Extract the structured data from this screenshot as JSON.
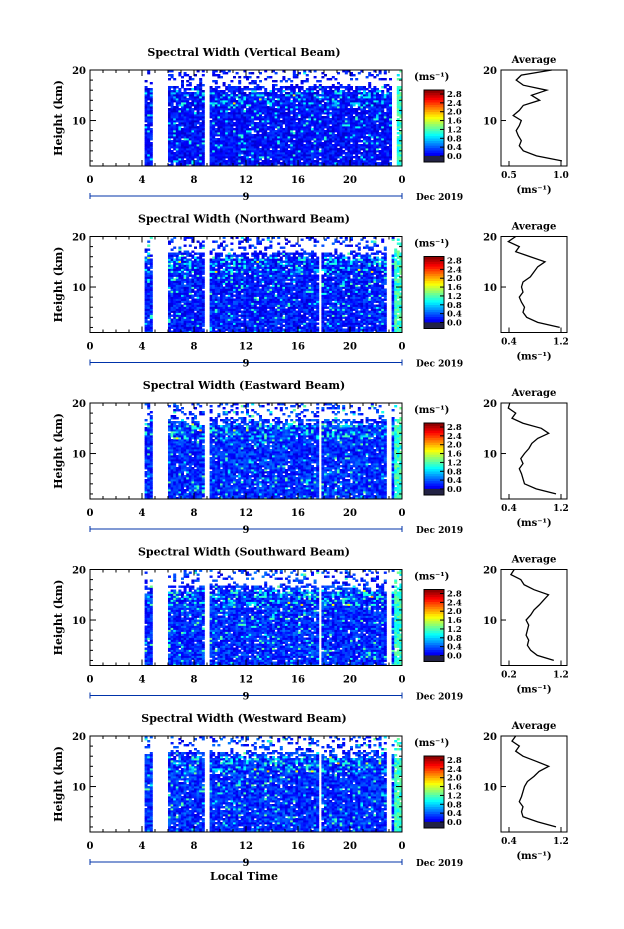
{
  "figure": {
    "xlabel": "Local Time",
    "date_label": "Dec 2019",
    "day_label": "9",
    "time_ticks": [
      "0",
      "4",
      "8",
      "12",
      "16",
      "20",
      "0"
    ],
    "height_ticks": [
      "10",
      "20"
    ],
    "ylabel": "Height (km)",
    "colorbar_unit": "(ms⁻¹)",
    "colorbar_ticks": [
      "0.0",
      "0.4",
      "0.8",
      "1.2",
      "1.6",
      "2.0",
      "2.4",
      "2.8"
    ],
    "profile_title": "Average",
    "profile_xlabel": "(ms⁻¹)"
  },
  "chart_data": [
    {
      "type": "heatmap",
      "title": "Spectral Width (Vertical Beam)",
      "xlabel": "Local Time",
      "ylabel": "Height (km)",
      "xlim": [
        0,
        24
      ],
      "ylim": [
        1,
        20
      ],
      "zlim": [
        0,
        3.0
      ],
      "data_gaps_hours": [
        [
          0,
          4.3
        ],
        [
          4.9,
          6.1
        ],
        [
          8.8,
          9.3
        ],
        [
          23.3,
          23.6
        ]
      ],
      "typical_value_ms": 0.4,
      "profile": {
        "type": "line",
        "title": "Average",
        "xlim": [
          0.4,
          1.05
        ],
        "xticks": [
          "0.5",
          "1.0"
        ],
        "heights_km": [
          2,
          3,
          4,
          5,
          6,
          7,
          8,
          9,
          10,
          11,
          12,
          13,
          14,
          15,
          16,
          17,
          18,
          19,
          20
        ],
        "values": [
          1.0,
          0.75,
          0.62,
          0.58,
          0.6,
          0.57,
          0.55,
          0.58,
          0.6,
          0.52,
          0.58,
          0.62,
          0.78,
          0.7,
          0.85,
          0.62,
          0.55,
          0.6,
          0.9
        ]
      }
    },
    {
      "type": "heatmap",
      "title": "Spectral Width (Northward Beam)",
      "xlabel": "Local Time",
      "ylabel": "Height (km)",
      "xlim": [
        0,
        24
      ],
      "ylim": [
        1,
        20
      ],
      "zlim": [
        0,
        3.0
      ],
      "data_gaps_hours": [
        [
          0,
          4.3
        ],
        [
          4.9,
          6.1
        ],
        [
          8.8,
          9.3
        ],
        [
          17.6,
          17.9
        ],
        [
          22.8,
          23.2
        ]
      ],
      "typical_value_ms": 0.45,
      "profile": {
        "type": "line",
        "title": "Average",
        "xlim": [
          0.3,
          1.2
        ],
        "xticks": [
          "0.4",
          "1.2"
        ],
        "heights_km": [
          2,
          3,
          4,
          5,
          6,
          7,
          8,
          9,
          10,
          11,
          12,
          13,
          14,
          15,
          16,
          17,
          18,
          19,
          20
        ],
        "values": [
          1.1,
          0.8,
          0.65,
          0.6,
          0.62,
          0.58,
          0.55,
          0.6,
          0.58,
          0.6,
          0.7,
          0.75,
          0.8,
          0.9,
          0.7,
          0.5,
          0.55,
          0.4,
          0.5
        ]
      }
    },
    {
      "type": "heatmap",
      "title": "Spectral Width (Eastward Beam)",
      "xlabel": "Local Time",
      "ylabel": "Height (km)",
      "xlim": [
        0,
        24
      ],
      "ylim": [
        1,
        20
      ],
      "zlim": [
        0,
        3.0
      ],
      "data_gaps_hours": [
        [
          0,
          4.3
        ],
        [
          4.9,
          6.1
        ],
        [
          8.8,
          9.3
        ],
        [
          17.6,
          17.9
        ],
        [
          22.8,
          23.2
        ]
      ],
      "typical_value_ms": 0.5,
      "profile": {
        "type": "line",
        "title": "Average",
        "xlim": [
          0.3,
          1.2
        ],
        "xticks": [
          "0.4",
          "1.2"
        ],
        "heights_km": [
          2,
          3,
          4,
          5,
          6,
          7,
          8,
          9,
          10,
          11,
          12,
          13,
          14,
          15,
          16,
          17,
          18,
          19,
          20
        ],
        "values": [
          1.05,
          0.78,
          0.62,
          0.6,
          0.58,
          0.55,
          0.6,
          0.57,
          0.62,
          0.68,
          0.72,
          0.8,
          0.95,
          0.85,
          0.6,
          0.45,
          0.5,
          0.4,
          0.42
        ]
      }
    },
    {
      "type": "heatmap",
      "title": "Spectral Width (Southward Beam)",
      "xlabel": "Local Time",
      "ylabel": "Height (km)",
      "xlim": [
        0,
        24
      ],
      "ylim": [
        1,
        20
      ],
      "zlim": [
        0,
        3.0
      ],
      "data_gaps_hours": [
        [
          0,
          4.3
        ],
        [
          4.9,
          6.1
        ],
        [
          8.8,
          9.3
        ],
        [
          17.6,
          17.9
        ],
        [
          22.8,
          23.2
        ]
      ],
      "typical_value_ms": 0.5,
      "profile": {
        "type": "line",
        "title": "Average",
        "xlim": [
          0.2,
          1.2
        ],
        "xticks": [
          "0.2",
          "1.2"
        ],
        "heights_km": [
          2,
          3,
          4,
          5,
          6,
          7,
          8,
          9,
          10,
          11,
          12,
          13,
          14,
          15,
          16,
          17,
          18,
          19,
          20
        ],
        "values": [
          1.0,
          0.75,
          0.65,
          0.6,
          0.62,
          0.58,
          0.6,
          0.62,
          0.58,
          0.65,
          0.7,
          0.78,
          0.85,
          0.92,
          0.7,
          0.55,
          0.5,
          0.35,
          0.4
        ]
      }
    },
    {
      "type": "heatmap",
      "title": "Spectral Width (Westward Beam)",
      "xlabel": "Local Time",
      "ylabel": "Height (km)",
      "xlim": [
        0,
        24
      ],
      "ylim": [
        1,
        20
      ],
      "zlim": [
        0,
        3.0
      ],
      "data_gaps_hours": [
        [
          0,
          4.3
        ],
        [
          4.9,
          6.1
        ],
        [
          8.8,
          9.3
        ],
        [
          17.6,
          17.9
        ],
        [
          22.8,
          23.2
        ]
      ],
      "typical_value_ms": 0.5,
      "profile": {
        "type": "line",
        "title": "Average",
        "xlim": [
          0.3,
          1.2
        ],
        "xticks": [
          "0.4",
          "1.2"
        ],
        "heights_km": [
          2,
          3,
          4,
          5,
          6,
          7,
          8,
          9,
          10,
          11,
          12,
          13,
          14,
          15,
          16,
          17,
          18,
          19,
          20
        ],
        "values": [
          1.05,
          0.8,
          0.6,
          0.58,
          0.6,
          0.55,
          0.58,
          0.6,
          0.62,
          0.66,
          0.75,
          0.82,
          0.95,
          0.78,
          0.6,
          0.5,
          0.55,
          0.45,
          0.5
        ]
      }
    }
  ]
}
